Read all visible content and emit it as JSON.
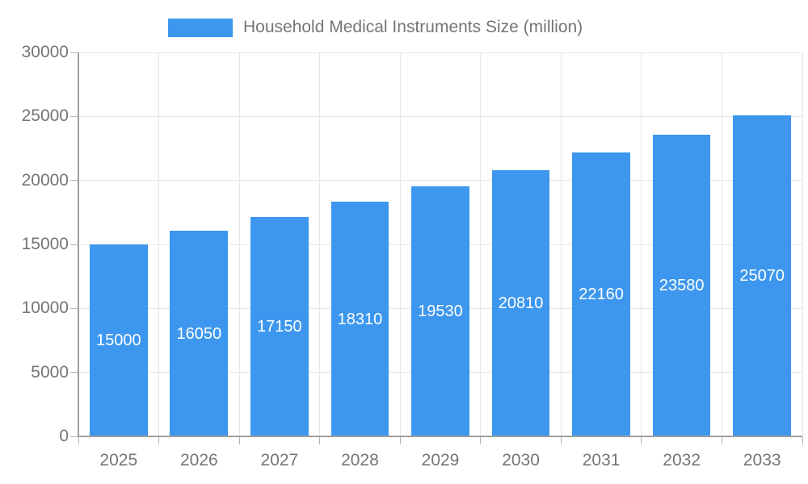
{
  "chart_data": {
    "type": "bar",
    "title": "Household Medical Instruments Size (million)",
    "legend": {
      "position": "top",
      "label": "Household Medical Instruments Size (million)"
    },
    "categories": [
      "2025",
      "2026",
      "2027",
      "2028",
      "2029",
      "2030",
      "2031",
      "2032",
      "2033"
    ],
    "series": [
      {
        "name": "Household Medical Instruments Size (million)",
        "values": [
          15000,
          16050,
          17150,
          18310,
          19530,
          20810,
          22160,
          23580,
          25070
        ]
      }
    ],
    "xlabel": "",
    "ylabel": "",
    "ylim": [
      0,
      30000
    ],
    "y_ticks": [
      0,
      5000,
      10000,
      15000,
      20000,
      25000,
      30000
    ],
    "grid": true,
    "colors": {
      "bar": "#3d97ee",
      "bar_value_label": "#ffffff",
      "axis_text": "#757575",
      "axis_line": "#9e9e9e",
      "gridline": "#e6e6e6"
    }
  }
}
